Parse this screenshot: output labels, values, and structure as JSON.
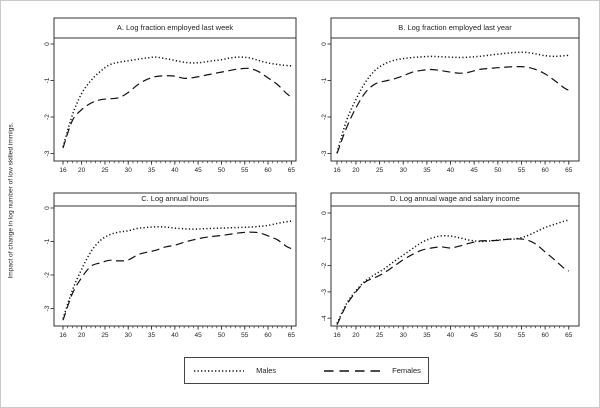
{
  "figure": {
    "ylabel": "Impact of change in log number of low skilled immigs.",
    "legend": {
      "males_label": "Males",
      "females_label": "Females"
    },
    "colors": {
      "line": "#111111",
      "frame": "#333333",
      "text": "#222222"
    }
  },
  "chart_data": [
    {
      "type": "line",
      "title": "A. Log fraction employed last week",
      "xlabel": "",
      "ylabel": "",
      "x": [
        16,
        18,
        20,
        22,
        24,
        26,
        28,
        30,
        32,
        34,
        36,
        38,
        40,
        42,
        44,
        46,
        48,
        50,
        52,
        54,
        56,
        58,
        60,
        62,
        64,
        65
      ],
      "xticks": [
        16,
        20,
        25,
        30,
        35,
        40,
        45,
        50,
        55,
        60,
        65
      ],
      "yticks": [
        0,
        -1,
        -2,
        -3
      ],
      "xlim": [
        14.1,
        66.0
      ],
      "ylim": [
        -3.2,
        0.71
      ],
      "grid": false,
      "series": [
        {
          "name": "Males",
          "style": "dotted",
          "values": [
            -2.82,
            -1.95,
            -1.36,
            -1.0,
            -0.75,
            -0.57,
            -0.5,
            -0.46,
            -0.42,
            -0.38,
            -0.36,
            -0.4,
            -0.45,
            -0.5,
            -0.52,
            -0.5,
            -0.46,
            -0.43,
            -0.38,
            -0.36,
            -0.38,
            -0.45,
            -0.52,
            -0.56,
            -0.59,
            -0.6
          ]
        },
        {
          "name": "Females",
          "style": "dashed",
          "values": [
            -2.85,
            -2.1,
            -1.8,
            -1.62,
            -1.53,
            -1.5,
            -1.47,
            -1.33,
            -1.12,
            -0.97,
            -0.89,
            -0.87,
            -0.88,
            -0.94,
            -0.92,
            -0.87,
            -0.82,
            -0.77,
            -0.72,
            -0.68,
            -0.67,
            -0.76,
            -0.93,
            -1.11,
            -1.36,
            -1.45
          ]
        }
      ]
    },
    {
      "type": "line",
      "title": "B. Log fraction employed last year",
      "xlabel": "",
      "ylabel": "",
      "x": [
        16,
        18,
        20,
        22,
        24,
        26,
        28,
        30,
        32,
        34,
        36,
        38,
        40,
        42,
        44,
        46,
        48,
        50,
        52,
        54,
        56,
        58,
        60,
        62,
        64,
        65
      ],
      "xticks": [
        16,
        20,
        25,
        30,
        35,
        40,
        45,
        50,
        55,
        60,
        65
      ],
      "yticks": [
        0,
        -1,
        -2,
        -3
      ],
      "xlim": [
        14.7,
        67.2
      ],
      "ylim": [
        -3.2,
        0.71
      ],
      "grid": false,
      "series": [
        {
          "name": "Males",
          "style": "dotted",
          "values": [
            -2.98,
            -2.1,
            -1.52,
            -1.05,
            -0.73,
            -0.55,
            -0.45,
            -0.4,
            -0.37,
            -0.35,
            -0.34,
            -0.35,
            -0.36,
            -0.37,
            -0.36,
            -0.34,
            -0.31,
            -0.28,
            -0.25,
            -0.23,
            -0.23,
            -0.27,
            -0.32,
            -0.34,
            -0.32,
            -0.31
          ]
        },
        {
          "name": "Females",
          "style": "dashed",
          "values": [
            -3.0,
            -2.3,
            -1.75,
            -1.33,
            -1.1,
            -1.02,
            -0.96,
            -0.87,
            -0.77,
            -0.72,
            -0.7,
            -0.73,
            -0.77,
            -0.8,
            -0.77,
            -0.7,
            -0.67,
            -0.65,
            -0.63,
            -0.62,
            -0.63,
            -0.7,
            -0.82,
            -1.0,
            -1.2,
            -1.27
          ]
        }
      ]
    },
    {
      "type": "line",
      "title": "C. Log annual hours",
      "xlabel": "",
      "ylabel": "",
      "x": [
        16,
        18,
        20,
        22,
        24,
        26,
        28,
        30,
        32,
        34,
        36,
        38,
        40,
        42,
        44,
        46,
        48,
        50,
        52,
        54,
        56,
        58,
        60,
        62,
        64,
        65
      ],
      "xticks": [
        16,
        20,
        25,
        30,
        35,
        40,
        45,
        50,
        55,
        60,
        65
      ],
      "yticks": [
        0,
        -1,
        -2,
        -3
      ],
      "xlim": [
        14.1,
        66.0
      ],
      "ylim": [
        -3.56,
        0.45
      ],
      "grid": false,
      "series": [
        {
          "name": "Males",
          "style": "dotted",
          "values": [
            -3.3,
            -2.46,
            -1.83,
            -1.3,
            -0.97,
            -0.8,
            -0.72,
            -0.68,
            -0.61,
            -0.58,
            -0.56,
            -0.57,
            -0.6,
            -0.62,
            -0.63,
            -0.62,
            -0.61,
            -0.6,
            -0.59,
            -0.58,
            -0.57,
            -0.55,
            -0.52,
            -0.46,
            -0.41,
            -0.39
          ]
        },
        {
          "name": "Females",
          "style": "dashed",
          "values": [
            -3.35,
            -2.56,
            -2.08,
            -1.74,
            -1.64,
            -1.56,
            -1.58,
            -1.55,
            -1.4,
            -1.32,
            -1.26,
            -1.16,
            -1.11,
            -1.02,
            -0.95,
            -0.89,
            -0.85,
            -0.82,
            -0.78,
            -0.74,
            -0.72,
            -0.74,
            -0.83,
            -0.95,
            -1.15,
            -1.21
          ]
        }
      ]
    },
    {
      "type": "line",
      "title": "D. Log annual wage and salary income",
      "xlabel": "",
      "ylabel": "",
      "x": [
        16,
        18,
        20,
        22,
        24,
        26,
        28,
        30,
        32,
        34,
        36,
        38,
        40,
        42,
        44,
        46,
        48,
        50,
        52,
        54,
        56,
        58,
        60,
        62,
        64,
        65
      ],
      "xticks": [
        16,
        20,
        25,
        30,
        35,
        40,
        45,
        50,
        55,
        60,
        65
      ],
      "yticks": [
        0,
        -1,
        -2,
        -3,
        -4
      ],
      "xlim": [
        14.7,
        67.2
      ],
      "ylim": [
        -4.3,
        0.76
      ],
      "grid": false,
      "series": [
        {
          "name": "Males",
          "style": "dotted",
          "values": [
            -4.2,
            -3.45,
            -2.96,
            -2.58,
            -2.34,
            -2.12,
            -1.85,
            -1.6,
            -1.35,
            -1.11,
            -0.96,
            -0.87,
            -0.88,
            -0.95,
            -1.03,
            -1.08,
            -1.07,
            -1.03,
            -1.0,
            -0.98,
            -0.88,
            -0.72,
            -0.55,
            -0.43,
            -0.31,
            -0.27
          ]
        },
        {
          "name": "Females",
          "style": "dashed",
          "values": [
            -4.25,
            -3.5,
            -3.0,
            -2.62,
            -2.46,
            -2.27,
            -2.03,
            -1.78,
            -1.57,
            -1.41,
            -1.33,
            -1.29,
            -1.33,
            -1.25,
            -1.15,
            -1.07,
            -1.05,
            -1.04,
            -1.0,
            -0.98,
            -1.02,
            -1.18,
            -1.48,
            -1.78,
            -2.1,
            -2.21
          ]
        }
      ]
    }
  ]
}
